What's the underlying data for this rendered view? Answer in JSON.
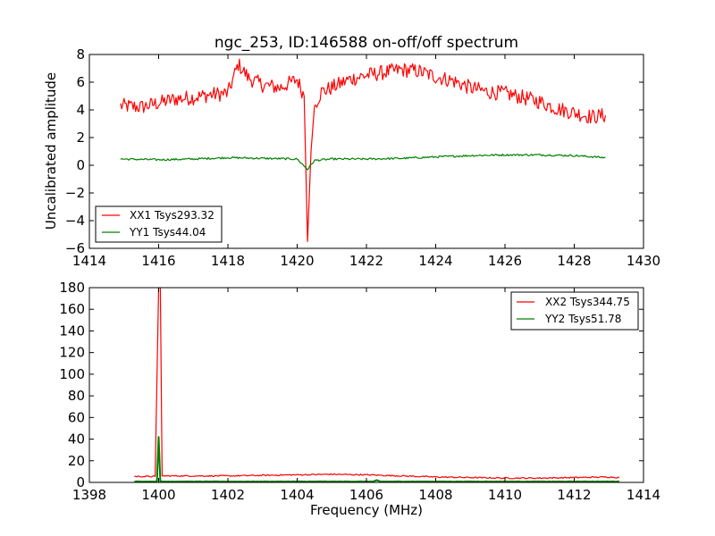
{
  "chart_data": [
    {
      "type": "line",
      "title": "ngc_253, ID:146588 on-off/off spectrum",
      "xlabel": "",
      "ylabel": "Uncalibrated amplitude",
      "xlim": [
        1414,
        1430
      ],
      "ylim": [
        -6,
        8
      ],
      "xticks": [
        "1414",
        "1416",
        "1418",
        "1420",
        "1422",
        "1424",
        "1426",
        "1428",
        "1430"
      ],
      "yticks": [
        "8",
        "6",
        "4",
        "2",
        "0",
        "−2",
        "−4",
        "−6"
      ],
      "xtick_values": [
        1414,
        1416,
        1418,
        1420,
        1422,
        1424,
        1426,
        1428,
        1430
      ],
      "ytick_values": [
        8,
        6,
        4,
        2,
        0,
        -2,
        -4,
        -6
      ],
      "legend_position": "lower-left",
      "grid": false,
      "series": [
        {
          "name": "XX1 Tsys293.32",
          "color": "#ff0000",
          "x": [
            1414.9,
            1415.5,
            1416.0,
            1416.5,
            1417.0,
            1417.5,
            1418.0,
            1418.3,
            1418.6,
            1419.0,
            1419.5,
            1420.0,
            1420.2,
            1420.3,
            1420.4,
            1420.5,
            1420.7,
            1421.0,
            1421.5,
            1422.0,
            1422.5,
            1423.0,
            1423.5,
            1424.0,
            1424.5,
            1425.0,
            1425.5,
            1426.0,
            1426.5,
            1427.0,
            1427.5,
            1428.0,
            1428.5,
            1428.9
          ],
          "y": [
            4.3,
            4.2,
            4.5,
            4.8,
            4.9,
            5.1,
            5.2,
            7.3,
            6.3,
            5.8,
            5.6,
            6.2,
            5.0,
            -5.5,
            1.0,
            4.3,
            5.3,
            5.6,
            6.2,
            6.5,
            6.7,
            6.9,
            6.8,
            6.4,
            6.1,
            5.6,
            5.3,
            5.2,
            4.9,
            4.6,
            4.1,
            3.8,
            3.5,
            3.6
          ]
        },
        {
          "name": "YY1 Tsys44.04",
          "color": "#008000",
          "x": [
            1414.9,
            1416.0,
            1417.0,
            1418.0,
            1419.0,
            1420.0,
            1420.3,
            1420.5,
            1421.0,
            1422.0,
            1423.0,
            1424.0,
            1425.0,
            1426.0,
            1427.0,
            1428.0,
            1428.9
          ],
          "y": [
            0.45,
            0.4,
            0.45,
            0.55,
            0.5,
            0.45,
            -0.3,
            0.35,
            0.45,
            0.45,
            0.5,
            0.6,
            0.7,
            0.75,
            0.75,
            0.7,
            0.55
          ]
        }
      ]
    },
    {
      "type": "line",
      "title": "",
      "xlabel": "Frequency (MHz)",
      "ylabel": "",
      "xlim": [
        1398,
        1414
      ],
      "ylim": [
        0,
        180
      ],
      "xticks": [
        "1398",
        "1400",
        "1402",
        "1404",
        "1406",
        "1408",
        "1410",
        "1412",
        "1414"
      ],
      "yticks": [
        "180",
        "160",
        "140",
        "120",
        "100",
        "80",
        "60",
        "40",
        "20",
        "0"
      ],
      "xtick_values": [
        1398,
        1400,
        1402,
        1404,
        1406,
        1408,
        1410,
        1412,
        1414
      ],
      "ytick_values": [
        180,
        160,
        140,
        120,
        100,
        80,
        60,
        40,
        20,
        0
      ],
      "legend_position": "upper-right",
      "grid": false,
      "series": [
        {
          "name": "XX2 Tsys344.75",
          "color": "#ff0000",
          "x": [
            1399.3,
            1399.9,
            1400.0,
            1400.05,
            1400.1,
            1401.0,
            1402.0,
            1403.0,
            1404.0,
            1405.0,
            1406.0,
            1407.0,
            1408.0,
            1409.0,
            1410.0,
            1411.0,
            1412.0,
            1413.0,
            1413.3
          ],
          "y": [
            5.5,
            5.5,
            180,
            180,
            6.0,
            6.0,
            6.0,
            6.5,
            7.0,
            7.5,
            7.0,
            6.0,
            5.0,
            4.5,
            4.0,
            4.0,
            4.5,
            5.0,
            4.5
          ]
        },
        {
          "name": "YY2 Tsys51.78",
          "color": "#008000",
          "x": [
            1399.3,
            1399.95,
            1400.0,
            1400.05,
            1401.0,
            1404.0,
            1406.2,
            1406.3,
            1406.4,
            1410.0,
            1413.3
          ],
          "y": [
            0.8,
            0.8,
            42,
            0.8,
            0.8,
            0.8,
            0.8,
            2.0,
            0.8,
            0.8,
            0.8
          ]
        }
      ]
    }
  ]
}
